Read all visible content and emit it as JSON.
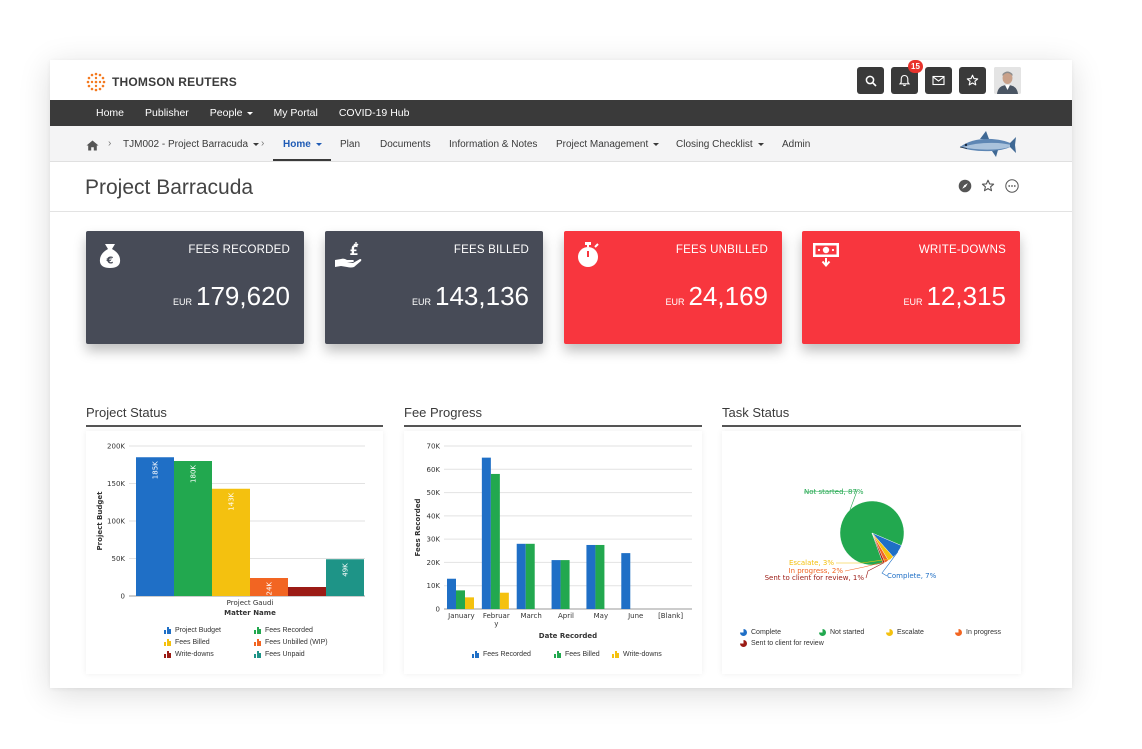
{
  "header": {
    "brand": "THOMSON REUTERS",
    "notifications_count": "15"
  },
  "nav": {
    "items": [
      {
        "label": "Home",
        "dropdown": false
      },
      {
        "label": "Publisher",
        "dropdown": false
      },
      {
        "label": "People",
        "dropdown": true
      },
      {
        "label": "My Portal",
        "dropdown": false
      },
      {
        "label": "COVID-19 Hub",
        "dropdown": false
      }
    ]
  },
  "subnav": {
    "project": "TJM002 - Project Barracuda",
    "items": [
      {
        "label": "Home",
        "dropdown": true,
        "active": true
      },
      {
        "label": "Plan"
      },
      {
        "label": "Documents"
      },
      {
        "label": "Information & Notes"
      },
      {
        "label": "Project Management",
        "dropdown": true
      },
      {
        "label": "Closing Checklist",
        "dropdown": true
      },
      {
        "label": "Admin"
      }
    ]
  },
  "page": {
    "title": "Project Barracuda"
  },
  "kpis": [
    {
      "label": "FEES RECORDED",
      "currency": "EUR",
      "value": "179,620",
      "color": "#474b57",
      "icon": "money-bag-euro-icon"
    },
    {
      "label": "FEES BILLED",
      "currency": "EUR",
      "value": "143,136",
      "color": "#474b57",
      "icon": "hand-money-icon"
    },
    {
      "label": "FEES UNBILLED",
      "currency": "EUR",
      "value": "24,169",
      "color": "#f8363e",
      "icon": "stopwatch-icon"
    },
    {
      "label": "WRITE-DOWNS",
      "currency": "EUR",
      "value": "12,315",
      "color": "#f8363e",
      "icon": "banknote-down-icon"
    }
  ],
  "panels": {
    "project_status": "Project Status",
    "fee_progress": "Fee Progress",
    "task_status": "Task Status"
  },
  "chart_data": [
    {
      "type": "bar",
      "categories": [
        "Project Gaudi"
      ],
      "xlabel": "Matter Name",
      "ylabel": "Project Budget",
      "ylim": [
        0,
        200000
      ],
      "yticks": [
        "0",
        "50K",
        "100K",
        "150K",
        "200K"
      ],
      "series": [
        {
          "name": "Project Budget",
          "values": [
            185000
          ],
          "label": "185K",
          "color": "#1f6fc6"
        },
        {
          "name": "Fees Recorded",
          "values": [
            180000
          ],
          "label": "180K",
          "color": "#22a84f"
        },
        {
          "name": "Fees Billed",
          "values": [
            143000
          ],
          "label": "143K",
          "color": "#f4c10f"
        },
        {
          "name": "Fees Unbilled (WIP)",
          "values": [
            24000
          ],
          "label": "24K",
          "color": "#f26522"
        },
        {
          "name": "Write-downs",
          "values": [
            12000
          ],
          "label": "",
          "color": "#9b1b15"
        },
        {
          "name": "Fees Unpaid",
          "values": [
            49000
          ],
          "label": "49K",
          "color": "#1e9487"
        }
      ]
    },
    {
      "type": "bar",
      "categories": [
        "January",
        "February",
        "March",
        "April",
        "May",
        "June",
        "[Blank]"
      ],
      "xlabel": "Date Recorded",
      "ylabel": "Fees Recorded",
      "ylim": [
        0,
        70000
      ],
      "yticks": [
        "0",
        "10K",
        "20K",
        "30K",
        "40K",
        "50K",
        "60K",
        "70K"
      ],
      "series": [
        {
          "name": "Fees Recorded",
          "values": [
            13000,
            65000,
            28000,
            21000,
            27500,
            24000,
            0
          ],
          "color": "#1f6fc6"
        },
        {
          "name": "Fees Billed",
          "values": [
            8000,
            58000,
            28000,
            21000,
            27500,
            0,
            0
          ],
          "color": "#22a84f"
        },
        {
          "name": "Write-downs",
          "values": [
            5000,
            7000,
            0,
            0,
            0,
            0,
            0
          ],
          "color": "#f4c10f"
        }
      ]
    },
    {
      "type": "pie",
      "slices": [
        {
          "name": "Complete",
          "value": 7,
          "label": "Complete, 7%",
          "color": "#1f6fc6"
        },
        {
          "name": "Not started",
          "value": 87,
          "label": "Not started, 87%",
          "color": "#22a84f"
        },
        {
          "name": "Escalate",
          "value": 3,
          "label": "Escalate, 3%",
          "color": "#f4c10f"
        },
        {
          "name": "In progress",
          "value": 2,
          "label": "In progress, 2%",
          "color": "#f26522"
        },
        {
          "name": "Sent to client for review",
          "value": 1,
          "label": "Sent to client for review, 1%",
          "color": "#9b1b15"
        }
      ]
    }
  ]
}
